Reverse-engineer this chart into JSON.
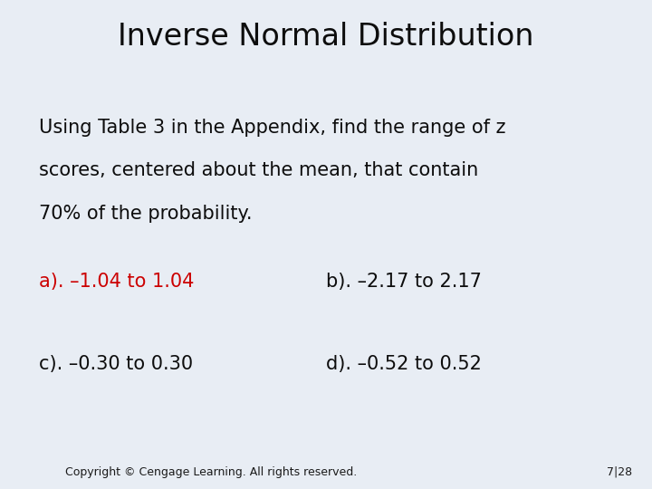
{
  "title": "Inverse Normal Distribution",
  "title_fontsize": 24,
  "title_color": "#0d0d0d",
  "font_family": "DejaVu Sans",
  "background_color": "#e8edf4",
  "footer_bg_color": "#7a98b8",
  "body_text_line1": "Using Table 3 in the Appendix, find the range of z",
  "body_text_line2": "scores, centered about the mean, that contain",
  "body_text_line3": "70% of the probability.",
  "body_fontsize": 15,
  "body_color": "#0d0d0d",
  "answer_a_text": "a). –1.04 to 1.04",
  "answer_b_text": "b). –2.17 to 2.17",
  "answer_c_text": "c). –0.30 to 0.30",
  "answer_d_text": "d). –0.52 to 0.52",
  "answer_a_color": "#cc0000",
  "answer_bcd_color": "#0d0d0d",
  "answer_fontsize": 15,
  "footer_text": "Copyright © Cengage Learning. All rights reserved.",
  "footer_page": "7|28",
  "footer_fontsize": 9,
  "footer_color": "#1a1a1a"
}
